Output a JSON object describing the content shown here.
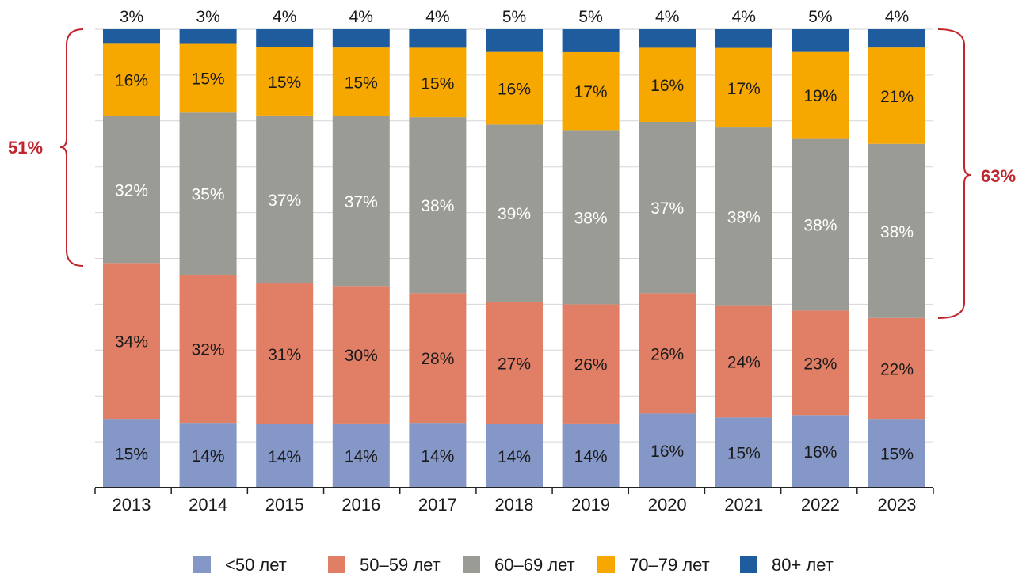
{
  "chart_data": {
    "type": "bar",
    "stacked": true,
    "categories": [
      "2013",
      "2014",
      "2015",
      "2016",
      "2017",
      "2018",
      "2019",
      "2020",
      "2021",
      "2022",
      "2023"
    ],
    "series": [
      {
        "name": "<50 лет",
        "color": "#8497c6",
        "values": [
          15,
          14,
          14,
          14,
          14,
          14,
          14,
          16,
          15,
          16,
          15
        ]
      },
      {
        "name": "50–59 лет",
        "color": "#e07f66",
        "values": [
          34,
          32,
          31,
          30,
          28,
          27,
          26,
          26,
          24,
          23,
          22
        ]
      },
      {
        "name": "60–69 лет",
        "color": "#9b9b96",
        "values": [
          32,
          35,
          37,
          37,
          38,
          39,
          38,
          37,
          38,
          38,
          38
        ]
      },
      {
        "name": "70–79 лет",
        "color": "#f6a800",
        "values": [
          16,
          15,
          15,
          15,
          15,
          16,
          17,
          16,
          17,
          19,
          21
        ]
      },
      {
        "name": "80+ лет",
        "color": "#1f5c9e",
        "values": [
          3,
          3,
          4,
          4,
          4,
          5,
          5,
          4,
          4,
          5,
          4
        ]
      }
    ],
    "labels": [
      [
        "15%",
        "14%",
        "14%",
        "14%",
        "14%",
        "14%",
        "14%",
        "16%",
        "15%",
        "16%",
        "15%"
      ],
      [
        "34%",
        "32%",
        "31%",
        "30%",
        "28%",
        "27%",
        "26%",
        "26%",
        "24%",
        "23%",
        "22%"
      ],
      [
        "32%",
        "35%",
        "37%",
        "37%",
        "38%",
        "39%",
        "38%",
        "37%",
        "38%",
        "38%",
        "38%"
      ],
      [
        "16%",
        "15%",
        "15%",
        "15%",
        "15%",
        "16%",
        "17%",
        "16%",
        "17%",
        "19%",
        "21%"
      ],
      [
        "3%",
        "3%",
        "4%",
        "4%",
        "4%",
        "5%",
        "5%",
        "4%",
        "4%",
        "5%",
        "4%"
      ]
    ],
    "label_colors": [
      "#1a1a1a",
      "#1a1a1a",
      "#ffffff",
      "#1a1a1a",
      "#1a1a1a"
    ],
    "annotations": [
      {
        "text": "51%",
        "category": "2013",
        "side": "left",
        "color": "#c0262d"
      },
      {
        "text": "63%",
        "category": "2023",
        "side": "right",
        "color": "#c0262d"
      }
    ],
    "legend_position": "bottom",
    "gridlines": true
  }
}
